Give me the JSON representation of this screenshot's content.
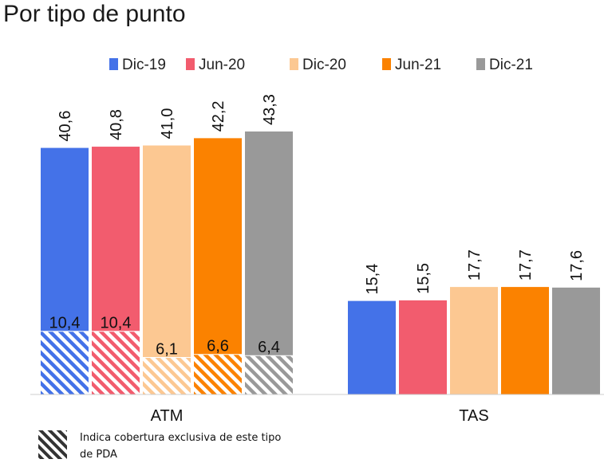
{
  "title": "Por tipo de punto",
  "chart_data": {
    "type": "bar",
    "categories": [
      "ATM",
      "TAS"
    ],
    "series": [
      {
        "name": "Dic-19",
        "color": "#4472e8",
        "values": [
          40.6,
          15.4
        ],
        "labels": [
          "40,6",
          "15,4"
        ],
        "exclusive": [
          10.4,
          null
        ],
        "exclusive_labels": [
          "10,4",
          ""
        ]
      },
      {
        "name": "Jun-20",
        "color": "#f25c6e",
        "values": [
          40.8,
          15.5
        ],
        "labels": [
          "40,8",
          "15,5"
        ],
        "exclusive": [
          10.4,
          null
        ],
        "exclusive_labels": [
          "10,4",
          ""
        ]
      },
      {
        "name": "Dic-20",
        "color": "#fcc892",
        "values": [
          41.0,
          17.7
        ],
        "labels": [
          "41,0",
          "17,7"
        ],
        "exclusive": [
          6.1,
          null
        ],
        "exclusive_labels": [
          "6,1",
          ""
        ]
      },
      {
        "name": "Jun-21",
        "color": "#fb8200",
        "values": [
          42.2,
          17.7
        ],
        "labels": [
          "42,2",
          "17,7"
        ],
        "exclusive": [
          6.6,
          null
        ],
        "exclusive_labels": [
          "6,6",
          ""
        ]
      },
      {
        "name": "Dic-21",
        "color": "#999999",
        "values": [
          43.3,
          17.6
        ],
        "labels": [
          "43,3",
          "17,6"
        ],
        "exclusive": [
          6.4,
          null
        ],
        "exclusive_labels": [
          "6,4",
          ""
        ]
      }
    ],
    "ylim": [
      0,
      43.3
    ],
    "legend": "top",
    "grid": false,
    "hatch_legend_text": "Indica cobertura exclusiva de este tipo de PDA"
  }
}
